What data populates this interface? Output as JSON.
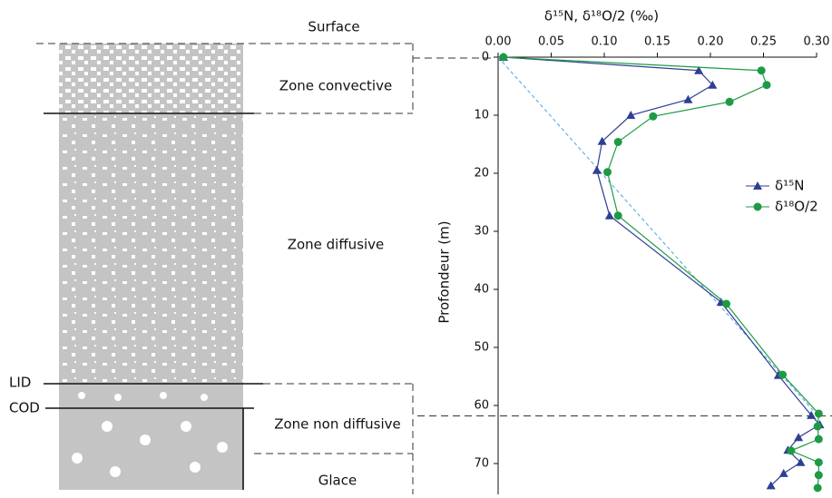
{
  "column": {
    "surface": "Surface",
    "zone_convective": "Zone convective",
    "zone_diffusive": "Zone diffusive",
    "lid": "LID",
    "cod": "COD",
    "zone_non_diffusive": "Zone non diffusive",
    "glace": "Glace"
  },
  "chart_data": {
    "type": "line",
    "x_title": "δ¹⁵N, δ¹⁸O/2 (‰)",
    "y_title": "Profondeur (m)",
    "xlim": [
      0,
      0.3
    ],
    "xticks": [
      {
        "value": 0,
        "label": "0.00"
      },
      {
        "value": 0.05,
        "label": "0.05"
      },
      {
        "value": 0.1,
        "label": "0.10"
      },
      {
        "value": 0.15,
        "label": "0.15"
      },
      {
        "value": 0.2,
        "label": "0.20"
      },
      {
        "value": 0.25,
        "label": "0.25"
      },
      {
        "value": 0.3,
        "label": "0.30"
      }
    ],
    "ylim": [
      0,
      75
    ],
    "yticks": [
      0,
      10,
      20,
      30,
      40,
      50,
      60,
      70
    ],
    "y_inverted": true,
    "x_axis_position": "top",
    "legend": "right",
    "series": [
      {
        "name": "δ¹⁵N",
        "color": "#2e3f93",
        "marker": "triangle",
        "values": [
          0.005,
          0.189,
          0.202,
          0.179,
          0.125,
          0.098,
          0.093,
          0.105,
          0.21,
          0.264,
          0.295,
          0.303,
          0.283,
          0.273,
          0.285,
          0.269,
          0.257
        ],
        "depth": [
          0,
          2.3,
          4.8,
          7.3,
          10,
          14.5,
          19.5,
          27.3,
          42.2,
          54.8,
          61.7,
          63.3,
          65.5,
          67.7,
          69.8,
          71.7,
          73.8
        ]
      },
      {
        "name": "δ¹⁸O/2",
        "color": "#1e9a45",
        "marker": "circle",
        "values": [
          0.005,
          0.248,
          0.253,
          0.218,
          0.146,
          0.113,
          0.103,
          0.113,
          0.215,
          0.268,
          0.302,
          0.301,
          0.302,
          0.276,
          0.302,
          0.302,
          0.301
        ],
        "depth": [
          0,
          2.3,
          4.8,
          7.7,
          10.2,
          14.6,
          19.8,
          27.3,
          42.5,
          54.7,
          61.4,
          63.6,
          65.8,
          67.8,
          69.8,
          72,
          74.2
        ]
      }
    ],
    "reference_line": {
      "color": "#4aa3df",
      "values": [
        0,
        0.3
      ],
      "depth": [
        0,
        61.5
      ]
    },
    "cod_depth": 61.8
  }
}
